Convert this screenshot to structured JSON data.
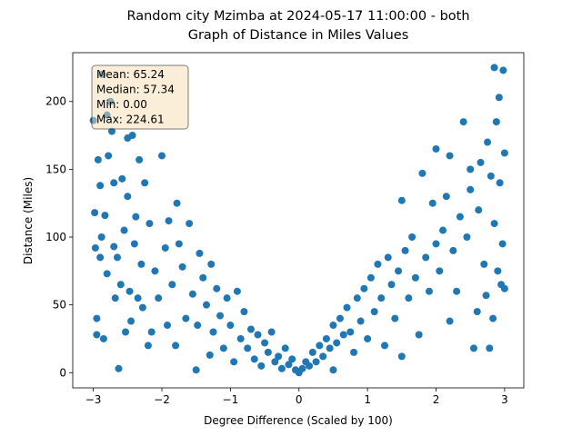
{
  "chart_data": {
    "type": "scatter",
    "title": "Random city Mzimba at 2024-05-17 11:00:00  - both",
    "subtitle": "Graph of Distance in Miles Values",
    "x_label": "Degree Difference (Scaled by 100)",
    "y_label": "Distance (Miles)",
    "annotations": [
      "Mean: 65.24",
      "Median: 57.34",
      "Min: 0.00",
      "Max: 224.61"
    ],
    "color": "#1f77b4",
    "xlim": [
      -3.3,
      3.28
    ],
    "ylim": [
      -11.2,
      236
    ],
    "xticks": [
      {
        "value": -3,
        "label": "−3"
      },
      {
        "value": -2,
        "label": "−2"
      },
      {
        "value": -1,
        "label": "−1"
      },
      0,
      1,
      2,
      3
    ],
    "yticks": [
      0,
      50,
      100,
      150,
      200
    ],
    "x": [
      -3.0,
      -2.98,
      -2.97,
      -2.95,
      -2.95,
      -2.93,
      -2.9,
      -2.9,
      -2.88,
      -2.87,
      -2.85,
      -2.83,
      -2.8,
      -2.8,
      -2.78,
      -2.75,
      -2.73,
      -2.7,
      -2.7,
      -2.68,
      -2.65,
      -2.63,
      -2.6,
      -2.58,
      -2.55,
      -2.53,
      -2.5,
      -2.5,
      -2.47,
      -2.45,
      -2.43,
      -2.4,
      -2.38,
      -2.35,
      -2.33,
      -2.3,
      -2.28,
      -2.25,
      -2.2,
      -2.18,
      -2.15,
      -2.1,
      -2.05,
      -2.0,
      -1.95,
      -1.92,
      -1.9,
      -1.85,
      -1.8,
      -1.78,
      -1.75,
      -1.7,
      -1.65,
      -1.6,
      -1.55,
      -1.5,
      -1.48,
      -1.45,
      -1.4,
      -1.35,
      -1.3,
      -1.28,
      -1.25,
      -1.2,
      -1.15,
      -1.1,
      -1.05,
      -1.0,
      -0.95,
      -0.9,
      -0.85,
      -0.8,
      -0.75,
      -0.7,
      -0.65,
      -0.6,
      -0.55,
      -0.5,
      -0.45,
      -0.4,
      -0.35,
      -0.3,
      -0.25,
      -0.2,
      -0.15,
      -0.1,
      -0.05,
      0.0,
      0.05,
      0.1,
      0.15,
      0.2,
      0.25,
      0.3,
      0.35,
      0.4,
      0.45,
      0.5,
      0.5,
      0.55,
      0.6,
      0.65,
      0.7,
      0.75,
      0.8,
      0.85,
      0.9,
      0.95,
      1.0,
      1.05,
      1.1,
      1.15,
      1.2,
      1.25,
      1.3,
      1.35,
      1.4,
      1.45,
      1.5,
      1.5,
      1.55,
      1.6,
      1.65,
      1.7,
      1.75,
      1.8,
      1.85,
      1.9,
      1.95,
      2.0,
      2.0,
      2.05,
      2.1,
      2.15,
      2.2,
      2.2,
      2.25,
      2.3,
      2.35,
      2.4,
      2.45,
      2.5,
      2.5,
      2.55,
      2.6,
      2.62,
      2.65,
      2.7,
      2.73,
      2.75,
      2.78,
      2.8,
      2.83,
      2.85,
      2.85,
      2.88,
      2.9,
      2.92,
      2.93,
      2.95,
      2.97,
      2.98,
      3.0,
      3.0
    ],
    "y": [
      186,
      118,
      92,
      28,
      40,
      157,
      138,
      85,
      100,
      220,
      25,
      116,
      73,
      190,
      160,
      200,
      178,
      93,
      140,
      55,
      85,
      3,
      65,
      143,
      105,
      30,
      173,
      130,
      60,
      38,
      175,
      95,
      115,
      55,
      157,
      80,
      48,
      140,
      20,
      110,
      30,
      75,
      55,
      160,
      92,
      35,
      112,
      65,
      20,
      125,
      95,
      78,
      40,
      110,
      58,
      2,
      35,
      88,
      70,
      50,
      13,
      80,
      30,
      62,
      42,
      18,
      55,
      35,
      8,
      60,
      25,
      45,
      18,
      32,
      10,
      28,
      5,
      22,
      15,
      30,
      8,
      12,
      3,
      18,
      6,
      10,
      2,
      0,
      3,
      8,
      5,
      15,
      8,
      20,
      12,
      25,
      18,
      35,
      2,
      22,
      40,
      28,
      48,
      30,
      15,
      55,
      38,
      62,
      25,
      70,
      45,
      80,
      55,
      20,
      85,
      65,
      40,
      75,
      12,
      127,
      90,
      55,
      100,
      70,
      28,
      147,
      85,
      60,
      125,
      165,
      95,
      75,
      105,
      130,
      38,
      160,
      90,
      60,
      115,
      185,
      100,
      150,
      135,
      18,
      45,
      120,
      155,
      80,
      57,
      170,
      18,
      145,
      40,
      225,
      110,
      185,
      75,
      203,
      140,
      65,
      95,
      223,
      162,
      62
    ]
  }
}
